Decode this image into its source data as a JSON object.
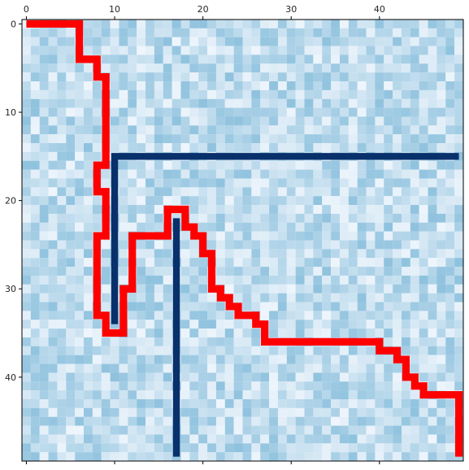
{
  "chart_data": {
    "type": "heatmap",
    "title": "",
    "xlabel": "",
    "ylabel": "",
    "xlim": [
      0,
      49
    ],
    "ylim": [
      49,
      0
    ],
    "x_ticks": [
      0,
      10,
      20,
      30,
      40
    ],
    "y_ticks": [
      0,
      10,
      20,
      30,
      40
    ],
    "x_tick_labels": [
      "0",
      "10",
      "20",
      "30",
      "40"
    ],
    "y_tick_labels": [
      "0",
      "10",
      "20",
      "30",
      "40"
    ],
    "x_axis_position": "top",
    "grid": false,
    "legend": "none",
    "colormap": {
      "name": "Blues",
      "low_color": "#eef5fc",
      "high_color": "#8fc2de"
    },
    "lines": [
      {
        "color": "#08306b",
        "points": [
          [
            49,
            15
          ],
          [
            10,
            15
          ],
          [
            10,
            34
          ]
        ]
      },
      {
        "color": "#08306b",
        "points": [
          [
            17,
            22
          ],
          [
            17,
            49
          ]
        ]
      },
      {
        "color": "#ff0000",
        "points": [
          [
            0,
            0
          ],
          [
            6,
            0
          ],
          [
            6,
            4
          ],
          [
            8,
            4
          ],
          [
            8,
            6
          ],
          [
            9,
            6
          ],
          [
            9,
            16
          ],
          [
            8,
            16
          ],
          [
            8,
            19
          ],
          [
            9,
            19
          ],
          [
            9,
            24
          ],
          [
            8,
            24
          ],
          [
            8,
            33
          ],
          [
            9,
            33
          ],
          [
            9,
            35
          ],
          [
            11,
            35
          ],
          [
            11,
            30
          ],
          [
            12,
            30
          ],
          [
            12,
            24
          ],
          [
            16,
            24
          ],
          [
            16,
            21
          ],
          [
            18,
            21
          ],
          [
            18,
            23
          ],
          [
            19,
            23
          ],
          [
            19,
            24
          ],
          [
            20,
            24
          ],
          [
            20,
            26
          ],
          [
            21,
            26
          ],
          [
            21,
            30
          ],
          [
            22,
            30
          ],
          [
            22,
            31
          ],
          [
            23,
            31
          ],
          [
            23,
            32
          ],
          [
            24,
            32
          ],
          [
            24,
            33
          ],
          [
            26,
            33
          ],
          [
            26,
            34
          ],
          [
            27,
            34
          ],
          [
            27,
            36
          ],
          [
            40,
            36
          ],
          [
            40,
            37
          ],
          [
            42,
            37
          ],
          [
            42,
            38
          ],
          [
            43,
            38
          ],
          [
            43,
            40
          ],
          [
            44,
            40
          ],
          [
            44,
            41
          ],
          [
            45,
            41
          ],
          [
            45,
            42
          ],
          [
            49,
            42
          ],
          [
            49,
            49
          ]
        ]
      }
    ]
  }
}
